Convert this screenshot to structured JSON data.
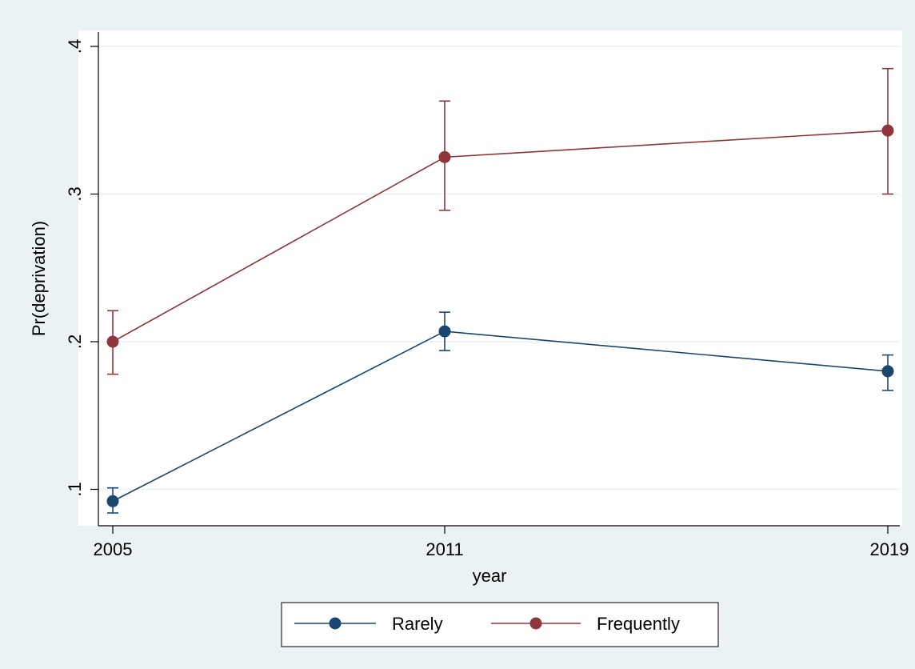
{
  "chart_data": {
    "type": "line",
    "xlabel": "year",
    "ylabel": "Pr(deprivation)",
    "x": [
      2005,
      2011,
      2019
    ],
    "x_tick_labels": [
      "2005",
      "2011",
      "2019"
    ],
    "y_ticks": [
      0.1,
      0.2,
      0.3,
      0.4
    ],
    "y_tick_labels": [
      ".1",
      ".2",
      ".3",
      ".4"
    ],
    "ylim": [
      0.075,
      0.41
    ],
    "grid": true,
    "legend_position": "bottom",
    "series": [
      {
        "name": "Rarely",
        "color": "#1a476f",
        "values": [
          0.092,
          0.207,
          0.18
        ],
        "ci_low": [
          0.084,
          0.194,
          0.167
        ],
        "ci_high": [
          0.101,
          0.22,
          0.191
        ]
      },
      {
        "name": "Frequently",
        "color": "#90353b",
        "values": [
          0.2,
          0.325,
          0.343
        ],
        "ci_low": [
          0.178,
          0.289,
          0.3
        ],
        "ci_high": [
          0.221,
          0.363,
          0.385
        ]
      }
    ],
    "colors": {
      "outer_background": "#eaf2f3",
      "plot_background": "#ffffff",
      "grid": "#eaf2f3"
    }
  }
}
